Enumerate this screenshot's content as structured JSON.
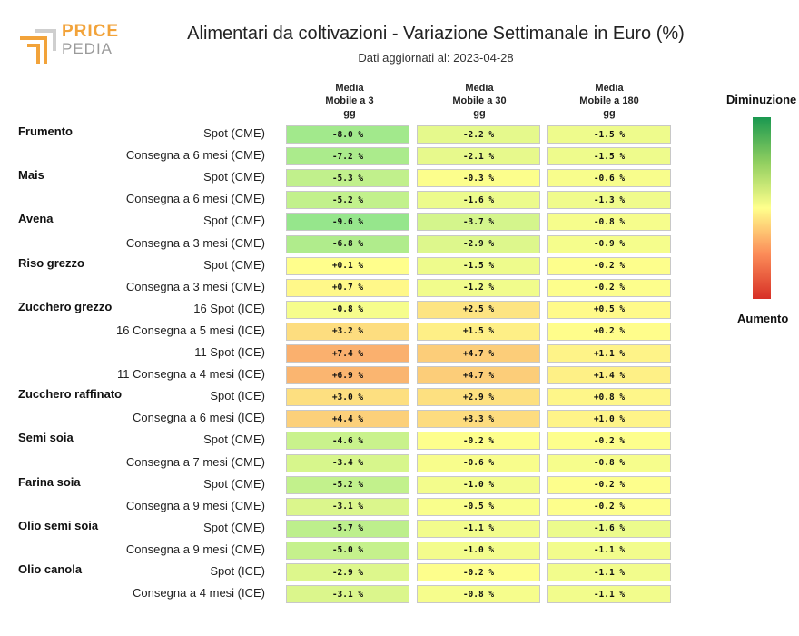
{
  "logo": {
    "line1": "PRICE",
    "line2": "PEDIA"
  },
  "title": "Alimentari da coltivazioni - Variazione Settimanale in Euro (%)",
  "subtitle": "Dati aggiornati al: 2023-04-28",
  "legend": {
    "top": "Diminuzione",
    "bottom": "Aumento",
    "colors": [
      "#1a9850",
      "#91cf60",
      "#ffff8c",
      "#fc8d59",
      "#d73027"
    ]
  },
  "chart_data": {
    "type": "table",
    "columns": [
      "Media Mobile a 3 gg",
      "Media Mobile a 30 gg",
      "Media Mobile a 180 gg"
    ],
    "column_lines": [
      [
        "Media",
        "Mobile a 3",
        "gg"
      ],
      [
        "Media",
        "Mobile a 30",
        "gg"
      ],
      [
        "Media",
        "Mobile a 180",
        "gg"
      ]
    ],
    "groups": [
      {
        "name": "Frumento",
        "rows": [
          {
            "label": "Spot (CME)",
            "values": [
              -8.0,
              -2.2,
              -1.5
            ],
            "texts": [
              "-8.0 %",
              "-2.2 %",
              "-1.5 %"
            ]
          },
          {
            "label": "Consegna a 6 mesi (CME)",
            "values": [
              -7.2,
              -2.1,
              -1.5
            ],
            "texts": [
              "-7.2 %",
              "-2.1 %",
              "-1.5 %"
            ]
          }
        ]
      },
      {
        "name": "Mais",
        "rows": [
          {
            "label": "Spot (CME)",
            "values": [
              -5.3,
              -0.3,
              -0.6
            ],
            "texts": [
              "-5.3 %",
              "-0.3 %",
              "-0.6 %"
            ]
          },
          {
            "label": "Consegna a 6 mesi (CME)",
            "values": [
              -5.2,
              -1.6,
              -1.3
            ],
            "texts": [
              "-5.2 %",
              "-1.6 %",
              "-1.3 %"
            ]
          }
        ]
      },
      {
        "name": "Avena",
        "rows": [
          {
            "label": "Spot (CME)",
            "values": [
              -9.6,
              -3.7,
              -0.8
            ],
            "texts": [
              "-9.6 %",
              "-3.7 %",
              "-0.8 %"
            ]
          },
          {
            "label": "Consegna a 3 mesi (CME)",
            "values": [
              -6.8,
              -2.9,
              -0.9
            ],
            "texts": [
              "-6.8 %",
              "-2.9 %",
              "-0.9 %"
            ]
          }
        ]
      },
      {
        "name": "Riso grezzo",
        "rows": [
          {
            "label": "Spot (CME)",
            "values": [
              0.1,
              -1.5,
              -0.2
            ],
            "texts": [
              "+0.1 %",
              "-1.5 %",
              "-0.2 %"
            ]
          },
          {
            "label": "Consegna a 3 mesi (CME)",
            "values": [
              0.7,
              -1.2,
              -0.2
            ],
            "texts": [
              "+0.7 %",
              "-1.2 %",
              "-0.2 %"
            ]
          }
        ]
      },
      {
        "name": "Zucchero grezzo",
        "rows": [
          {
            "label": "16 Spot (ICE)",
            "values": [
              -0.8,
              2.5,
              0.5
            ],
            "texts": [
              "-0.8 %",
              "+2.5 %",
              "+0.5 %"
            ]
          },
          {
            "label": "16 Consegna a 5 mesi (ICE)",
            "values": [
              3.2,
              1.5,
              0.2
            ],
            "texts": [
              "+3.2 %",
              "+1.5 %",
              "+0.2 %"
            ]
          },
          {
            "label": "11 Spot (ICE)",
            "values": [
              7.4,
              4.7,
              1.1
            ],
            "texts": [
              "+7.4 %",
              "+4.7 %",
              "+1.1 %"
            ]
          },
          {
            "label": "11 Consegna a 4 mesi (ICE)",
            "values": [
              6.9,
              4.7,
              1.4
            ],
            "texts": [
              "+6.9 %",
              "+4.7 %",
              "+1.4 %"
            ]
          }
        ]
      },
      {
        "name": "Zucchero raffinato",
        "rows": [
          {
            "label": "Spot (ICE)",
            "values": [
              3.0,
              2.9,
              0.8
            ],
            "texts": [
              "+3.0 %",
              "+2.9 %",
              "+0.8 %"
            ]
          },
          {
            "label": "Consegna a 6 mesi (ICE)",
            "values": [
              4.4,
              3.3,
              1.0
            ],
            "texts": [
              "+4.4 %",
              "+3.3 %",
              "+1.0 %"
            ]
          }
        ]
      },
      {
        "name": "Semi soia",
        "rows": [
          {
            "label": "Spot (CME)",
            "values": [
              -4.6,
              -0.2,
              -0.2
            ],
            "texts": [
              "-4.6 %",
              "-0.2 %",
              "-0.2 %"
            ]
          },
          {
            "label": "Consegna a 7 mesi (CME)",
            "values": [
              -3.4,
              -0.6,
              -0.8
            ],
            "texts": [
              "-3.4 %",
              "-0.6 %",
              "-0.8 %"
            ]
          }
        ]
      },
      {
        "name": "Farina soia",
        "rows": [
          {
            "label": "Spot (CME)",
            "values": [
              -5.2,
              -1.0,
              -0.2
            ],
            "texts": [
              "-5.2 %",
              "-1.0 %",
              "-0.2 %"
            ]
          },
          {
            "label": "Consegna a 9 mesi (CME)",
            "values": [
              -3.1,
              -0.5,
              -0.2
            ],
            "texts": [
              "-3.1 %",
              "-0.5 %",
              "-0.2 %"
            ]
          }
        ]
      },
      {
        "name": "Olio semi soia",
        "rows": [
          {
            "label": "Spot (CME)",
            "values": [
              -5.7,
              -1.1,
              -1.6
            ],
            "texts": [
              "-5.7 %",
              "-1.1 %",
              "-1.6 %"
            ]
          },
          {
            "label": "Consegna a 9 mesi (CME)",
            "values": [
              -5.0,
              -1.0,
              -1.1
            ],
            "texts": [
              "-5.0 %",
              "-1.0 %",
              "-1.1 %"
            ]
          }
        ]
      },
      {
        "name": "Olio canola",
        "rows": [
          {
            "label": "Spot (ICE)",
            "values": [
              -2.9,
              -0.2,
              -1.1
            ],
            "texts": [
              "-2.9 %",
              "-0.2 %",
              "-1.1 %"
            ]
          },
          {
            "label": "Consegna a 4 mesi (ICE)",
            "values": [
              -3.1,
              -0.8,
              -1.1
            ],
            "texts": [
              "-3.1 %",
              "-0.8 %",
              "-1.1 %"
            ]
          }
        ]
      }
    ]
  }
}
